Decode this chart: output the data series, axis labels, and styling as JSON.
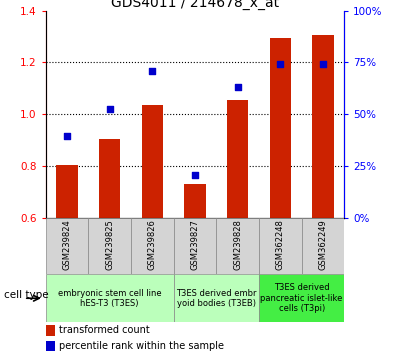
{
  "title": "GDS4011 / 214678_x_at",
  "samples": [
    "GSM239824",
    "GSM239825",
    "GSM239826",
    "GSM239827",
    "GSM239828",
    "GSM362248",
    "GSM362249"
  ],
  "bar_values": [
    0.805,
    0.905,
    1.035,
    0.73,
    1.055,
    1.295,
    1.305
  ],
  "dot_values": [
    0.915,
    1.02,
    1.165,
    0.765,
    1.105,
    1.195,
    1.195
  ],
  "ylim": [
    0.6,
    1.4
  ],
  "yticks_left": [
    0.6,
    0.8,
    1.0,
    1.2,
    1.4
  ],
  "yticks_right_pct": [
    0,
    25,
    50,
    75,
    100
  ],
  "bar_color": "#cc2200",
  "dot_color": "#0000cc",
  "bar_width": 0.5,
  "groups": [
    {
      "start": 0,
      "end": 2,
      "label": "embryonic stem cell line\nhES-T3 (T3ES)",
      "color": "#bbffbb"
    },
    {
      "start": 3,
      "end": 4,
      "label": "T3ES derived embr\nyoid bodies (T3EB)",
      "color": "#bbffbb"
    },
    {
      "start": 5,
      "end": 6,
      "label": "T3ES derived\npancreatic islet-like\ncells (T3pi)",
      "color": "#44ee44"
    }
  ],
  "title_fontsize": 10,
  "tick_fontsize": 7.5,
  "sample_fontsize": 6.0,
  "group_fontsize": 6.0,
  "legend_fontsize": 7.0
}
